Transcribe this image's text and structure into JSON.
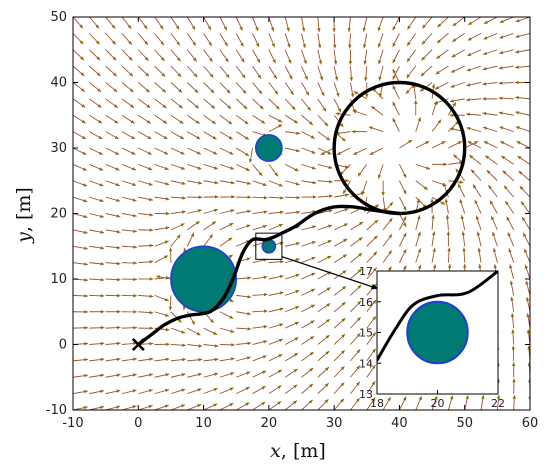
{
  "chart_data": {
    "type": "vector-field",
    "xlabel_var": "x",
    "xlabel_unit": ", [m]",
    "ylabel_var": "y",
    "ylabel_unit": ", [m]",
    "xlim": [
      -10,
      60
    ],
    "ylim": [
      -10,
      50
    ],
    "xticks": [
      "-10",
      "0",
      "10",
      "20",
      "30",
      "40",
      "50",
      "60"
    ],
    "yticks": [
      "-10",
      "0",
      "10",
      "20",
      "30",
      "40",
      "50"
    ],
    "colors": {
      "arrow": "#a0522d",
      "arrow_head": "#8c6a00",
      "obstacle_fill": "#007a73",
      "obstacle_edge": "#1f3ed6",
      "path": "#000000"
    },
    "start_marker": {
      "x": 0,
      "y": 0,
      "symbol": "×"
    },
    "obstacles": [
      {
        "x": 10,
        "y": 10,
        "r": 5
      },
      {
        "x": 20,
        "y": 30,
        "r": 2
      },
      {
        "x": 20,
        "y": 15,
        "r": 1
      }
    ],
    "attractor_circle": {
      "x": 40,
      "y": 30,
      "r": 10
    },
    "trajectory": [
      [
        0,
        0
      ],
      [
        2,
        1.5
      ],
      [
        4,
        3
      ],
      [
        6,
        4
      ],
      [
        8,
        4.5
      ],
      [
        11,
        5
      ],
      [
        13,
        7
      ],
      [
        14.5,
        10
      ],
      [
        16,
        14
      ],
      [
        17.5,
        16
      ],
      [
        19.5,
        16
      ],
      [
        21,
        16.5
      ],
      [
        22,
        17
      ],
      [
        24,
        18
      ],
      [
        27,
        20
      ],
      [
        30,
        21
      ],
      [
        33,
        21
      ],
      [
        36,
        20.5
      ],
      [
        40,
        20
      ]
    ],
    "inset": {
      "xlim": [
        18,
        22
      ],
      "ylim": [
        13,
        17
      ],
      "xticks": [
        "18",
        "20",
        "22"
      ],
      "yticks": [
        "13",
        "14",
        "15",
        "16",
        "17"
      ],
      "zoom_box": {
        "x0": 18,
        "x1": 22,
        "y0": 13,
        "y1": 17
      },
      "trajectory": [
        [
          18,
          14.1
        ],
        [
          18.6,
          15.1
        ],
        [
          19.2,
          15.9
        ],
        [
          20,
          16.2
        ],
        [
          21,
          16.3
        ],
        [
          22,
          17
        ]
      ]
    }
  }
}
